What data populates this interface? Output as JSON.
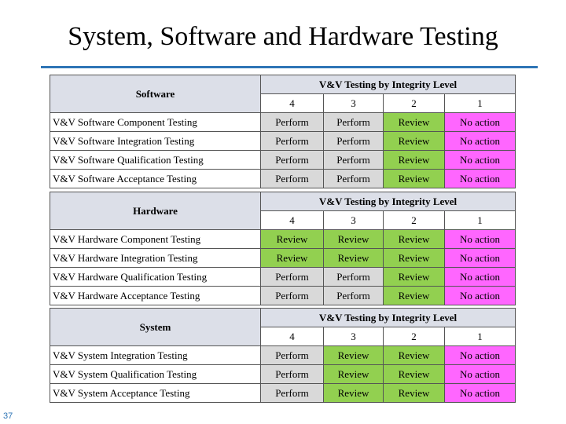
{
  "title": "System, Software and Hardware Testing",
  "page_number": "37",
  "levels": [
    "4",
    "3",
    "2",
    "1"
  ],
  "colors": {
    "Perform": "#d9d9d9",
    "Review": "#92d050",
    "No action": "#ff66ff",
    "title_rule": "#2e75b6"
  },
  "tables": [
    {
      "category": "Software",
      "header": "V&V Testing by Integrity Level",
      "rows": [
        {
          "label": "V&V Software Component Testing",
          "values": [
            "Perform",
            "Perform",
            "Review",
            "No action"
          ]
        },
        {
          "label": "V&V Software Integration Testing",
          "values": [
            "Perform",
            "Perform",
            "Review",
            "No action"
          ]
        },
        {
          "label": "V&V Software Qualification Testing",
          "values": [
            "Perform",
            "Perform",
            "Review",
            "No action"
          ]
        },
        {
          "label": "V&V Software Acceptance Testing",
          "values": [
            "Perform",
            "Perform",
            "Review",
            "No action"
          ]
        }
      ]
    },
    {
      "category": "Hardware",
      "header": "V&V Testing by Integrity Level",
      "rows": [
        {
          "label": "V&V Hardware Component Testing",
          "values": [
            "Review",
            "Review",
            "Review",
            "No action"
          ]
        },
        {
          "label": "V&V Hardware Integration Testing",
          "values": [
            "Review",
            "Review",
            "Review",
            "No action"
          ]
        },
        {
          "label": "V&V Hardware Qualification Testing",
          "values": [
            "Perform",
            "Perform",
            "Review",
            "No action"
          ]
        },
        {
          "label": "V&V Hardware Acceptance Testing",
          "values": [
            "Perform",
            "Perform",
            "Review",
            "No action"
          ]
        }
      ]
    },
    {
      "category": "System",
      "header": "V&V Testing by Integrity Level",
      "rows": [
        {
          "label": "V&V System Integration Testing",
          "values": [
            "Perform",
            "Review",
            "Review",
            "No action"
          ]
        },
        {
          "label": "V&V System Qualification Testing",
          "values": [
            "Perform",
            "Review",
            "Review",
            "No action"
          ]
        },
        {
          "label": "V&V System Acceptance Testing",
          "values": [
            "Perform",
            "Review",
            "Review",
            "No action"
          ]
        }
      ]
    }
  ]
}
